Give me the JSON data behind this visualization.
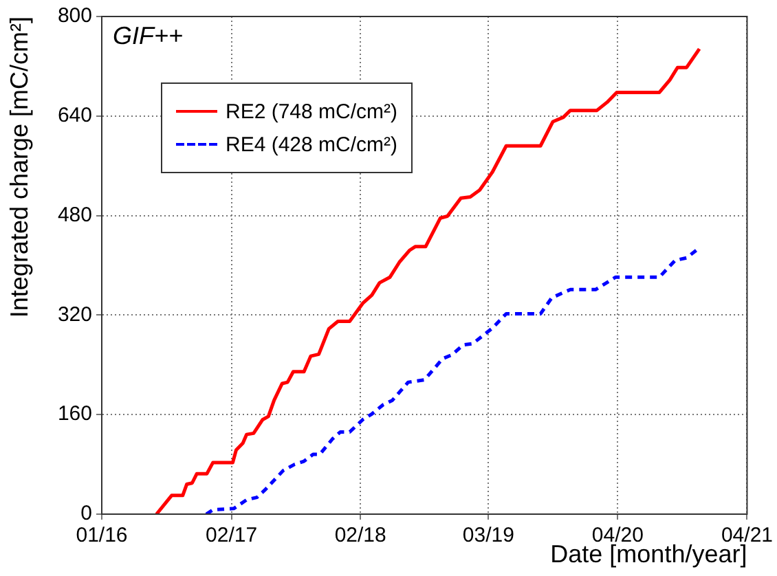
{
  "chart_data": {
    "type": "line",
    "xlabel": "Date [month/year]",
    "ylabel": "Integrated charge [mC/cm²]",
    "annotations": [
      "GIF++"
    ],
    "xlim": [
      "2016-01-15",
      "2021-04-19"
    ],
    "xticks": [
      {
        "value": "2016-01-15",
        "label": "01/16"
      },
      {
        "value": "2017-02-04",
        "label": "02/17"
      },
      {
        "value": "2018-02-23",
        "label": "02/18"
      },
      {
        "value": "2019-03-11",
        "label": "03/19"
      },
      {
        "value": "2020-03-30",
        "label": "04/20"
      },
      {
        "value": "2021-04-19",
        "label": "04/21"
      }
    ],
    "ylim": [
      0,
      800
    ],
    "yticks": [
      0,
      160,
      320,
      480,
      640,
      800
    ],
    "grid": true,
    "legend": "top left",
    "marker": "none",
    "series": [
      {
        "name": "RE2 (748 mC/cm²)",
        "color": "#ff0000",
        "line_style": "solid",
        "x": [
          "2016-06-26",
          "2016-08-10",
          "2016-09-12",
          "2016-09-24",
          "2016-10-10",
          "2016-10-24",
          "2016-11-23",
          "2016-12-11",
          "2017-02-08",
          "2017-02-18",
          "2017-03-10",
          "2017-03-21",
          "2017-04-11",
          "2017-05-08",
          "2017-05-25",
          "2017-06-11",
          "2017-07-05",
          "2017-07-21",
          "2017-08-07",
          "2017-09-08",
          "2017-09-28",
          "2017-10-22",
          "2017-11-21",
          "2017-12-18",
          "2018-01-22",
          "2018-03-02",
          "2018-03-29",
          "2018-04-21",
          "2018-05-22",
          "2018-06-19",
          "2018-07-19",
          "2018-08-05",
          "2018-09-05",
          "2018-10-19",
          "2018-11-09",
          "2018-12-19",
          "2019-01-16",
          "2019-02-13",
          "2019-03-23",
          "2019-05-03",
          "2019-08-13",
          "2019-09-19",
          "2019-10-20",
          "2019-11-10",
          "2020-01-28",
          "2020-02-27",
          "2020-03-27",
          "2020-08-01",
          "2020-09-01",
          "2020-09-24",
          "2020-10-21",
          "2020-11-28"
        ],
        "values": [
          0,
          30,
          30,
          48,
          50,
          65,
          65,
          83,
          83,
          103,
          114,
          128,
          130,
          152,
          157,
          183,
          210,
          212,
          229,
          229,
          254,
          257,
          298,
          310,
          310,
          339,
          352,
          372,
          381,
          405,
          424,
          430,
          430,
          476,
          479,
          508,
          510,
          521,
          550,
          592,
          592,
          631,
          638,
          649,
          649,
          662,
          678,
          678,
          698,
          718,
          718,
          748
        ]
      },
      {
        "name": "RE4 (428 mC/cm²)",
        "color": "#0000ff",
        "line_style": "dashed",
        "x": [
          "2016-11-21",
          "2016-12-11",
          "2017-02-11",
          "2017-03-21",
          "2017-04-21",
          "2017-05-15",
          "2017-07-08",
          "2017-08-11",
          "2017-09-08",
          "2017-10-05",
          "2017-10-25",
          "2017-12-02",
          "2017-12-25",
          "2018-01-22",
          "2018-03-02",
          "2018-03-29",
          "2018-05-02",
          "2018-05-29",
          "2018-07-15",
          "2018-09-02",
          "2018-10-26",
          "2018-11-22",
          "2018-12-26",
          "2019-01-23",
          "2019-03-23",
          "2019-05-03",
          "2019-08-13",
          "2019-09-16",
          "2019-11-10",
          "2020-01-24",
          "2020-03-24",
          "2020-08-01",
          "2020-09-17",
          "2020-10-21",
          "2020-11-28"
        ],
        "values": [
          0,
          7,
          9,
          23,
          27,
          39,
          70,
          80,
          85,
          96,
          96,
          121,
          132,
          132,
          152,
          161,
          176,
          183,
          212,
          216,
          250,
          256,
          272,
          274,
          299,
          322,
          322,
          348,
          361,
          361,
          381,
          381,
          408,
          412,
          428
        ]
      }
    ]
  }
}
